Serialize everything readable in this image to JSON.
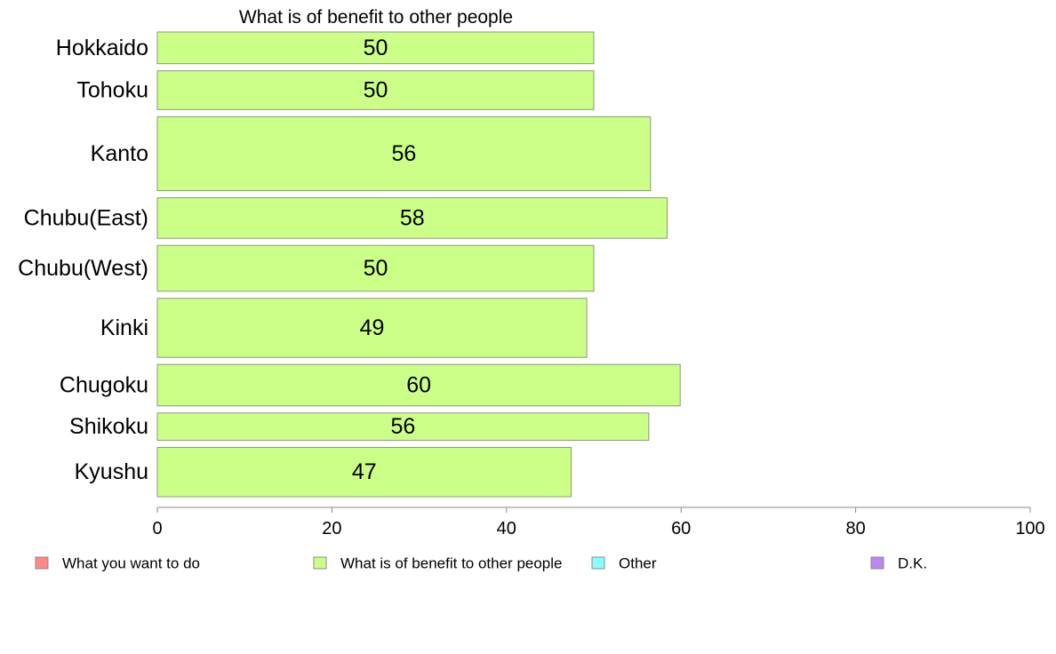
{
  "chart_data": {
    "type": "bar",
    "orientation": "horizontal",
    "title": "What is of benefit to other people",
    "categories": [
      "Hokkaido",
      "Tohoku",
      "Kanto",
      "Chubu(East)",
      "Chubu(West)",
      "Kinki",
      "Chugoku",
      "Shikoku",
      "Kyushu"
    ],
    "category_weights": [
      36,
      44,
      84,
      46,
      52,
      67,
      47,
      31,
      56
    ],
    "values": [
      50,
      50,
      56.5,
      58.4,
      50,
      49.2,
      59.9,
      56.3,
      47.4
    ],
    "value_labels": [
      "50",
      "50",
      "56",
      "58",
      "50",
      "49",
      "60",
      "56",
      "47"
    ],
    "xlim": [
      0,
      100
    ],
    "xticks": [
      "0",
      "20",
      "40",
      "60",
      "80",
      "100"
    ],
    "xtick_values": [
      0,
      20,
      40,
      60,
      80,
      100
    ],
    "bar_color": "#ccff88",
    "bar_stroke": "#8a9a78",
    "axis_color": "#888888",
    "legend": {
      "placement": "bottom",
      "items": [
        {
          "label": "What you want to do",
          "color": "#ff8888"
        },
        {
          "label": "What is of benefit to other people",
          "color": "#ccff88"
        },
        {
          "label": "Other",
          "color": "#88ffff"
        },
        {
          "label": "D.K.",
          "color": "#bb88ee"
        }
      ]
    }
  }
}
